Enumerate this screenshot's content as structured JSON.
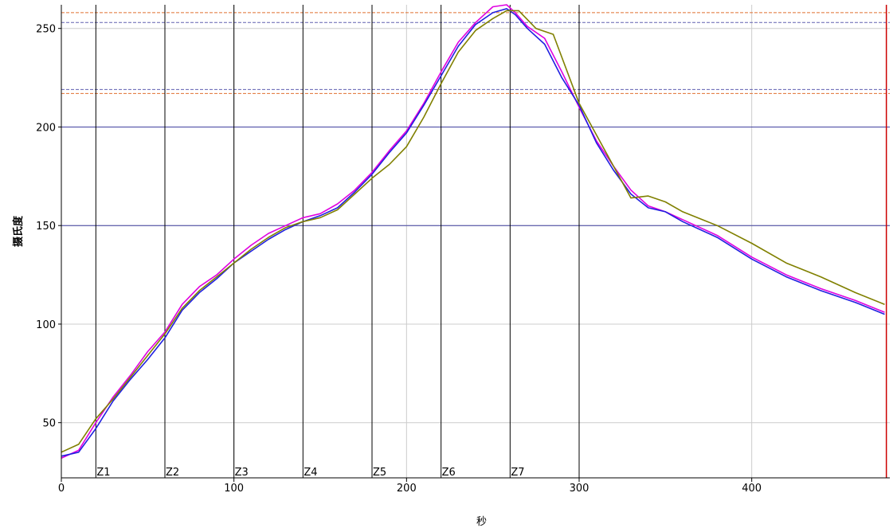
{
  "chart_data": {
    "type": "line",
    "xlabel": "秒",
    "ylabel": "摄氏度",
    "xlim": [
      0,
      480
    ],
    "ylim": [
      22,
      262
    ],
    "x_ticks": [
      0,
      100,
      200,
      300,
      400
    ],
    "y_ticks": [
      50,
      100,
      150,
      200,
      250
    ],
    "zones": [
      {
        "label": "Z1",
        "x": 20
      },
      {
        "label": "Z2",
        "x": 60
      },
      {
        "label": "Z3",
        "x": 100
      },
      {
        "label": "Z4",
        "x": 140
      },
      {
        "label": "Z5",
        "x": 180
      },
      {
        "label": "Z6",
        "x": 220
      },
      {
        "label": "Z7",
        "x": 260
      },
      {
        "label": "",
        "x": 300
      }
    ],
    "reference_lines": [
      {
        "y": 258,
        "color": "#e07030",
        "style": "dashed"
      },
      {
        "y": 253,
        "color": "#6060b0",
        "style": "dashed"
      },
      {
        "y": 219,
        "color": "#6060b0",
        "style": "dashed"
      },
      {
        "y": 217,
        "color": "#e07030",
        "style": "dashed"
      },
      {
        "y": 200,
        "color": "#4040a0",
        "style": "solid"
      },
      {
        "y": 150,
        "color": "#4040a0",
        "style": "solid"
      }
    ],
    "end_line": {
      "x": 478,
      "color": "#cc0000"
    },
    "series": [
      {
        "color": "#e000e0",
        "points": [
          [
            0,
            32
          ],
          [
            10,
            36
          ],
          [
            20,
            50
          ],
          [
            30,
            63
          ],
          [
            40,
            74
          ],
          [
            50,
            86
          ],
          [
            60,
            96
          ],
          [
            70,
            110
          ],
          [
            80,
            119
          ],
          [
            90,
            125
          ],
          [
            100,
            133
          ],
          [
            110,
            140
          ],
          [
            120,
            146
          ],
          [
            130,
            150
          ],
          [
            140,
            154
          ],
          [
            150,
            156
          ],
          [
            160,
            161
          ],
          [
            170,
            168
          ],
          [
            180,
            177
          ],
          [
            190,
            188
          ],
          [
            200,
            198
          ],
          [
            210,
            212
          ],
          [
            220,
            228
          ],
          [
            230,
            243
          ],
          [
            240,
            253
          ],
          [
            250,
            261
          ],
          [
            258,
            262
          ],
          [
            263,
            258
          ],
          [
            270,
            251
          ],
          [
            280,
            245
          ],
          [
            290,
            228
          ],
          [
            300,
            210
          ],
          [
            310,
            193
          ],
          [
            320,
            180
          ],
          [
            330,
            168
          ],
          [
            340,
            160
          ],
          [
            350,
            157
          ],
          [
            360,
            153
          ],
          [
            380,
            145
          ],
          [
            400,
            134
          ],
          [
            420,
            125
          ],
          [
            440,
            118
          ],
          [
            460,
            112
          ],
          [
            477,
            106
          ]
        ]
      },
      {
        "color": "#2020e0",
        "points": [
          [
            0,
            33
          ],
          [
            10,
            35
          ],
          [
            20,
            47
          ],
          [
            30,
            61
          ],
          [
            40,
            72
          ],
          [
            50,
            82
          ],
          [
            60,
            93
          ],
          [
            70,
            107
          ],
          [
            80,
            116
          ],
          [
            90,
            123
          ],
          [
            100,
            131
          ],
          [
            110,
            137
          ],
          [
            120,
            143
          ],
          [
            130,
            148
          ],
          [
            140,
            152
          ],
          [
            150,
            155
          ],
          [
            160,
            159
          ],
          [
            170,
            167
          ],
          [
            180,
            176
          ],
          [
            190,
            187
          ],
          [
            200,
            197
          ],
          [
            210,
            211
          ],
          [
            220,
            226
          ],
          [
            230,
            241
          ],
          [
            240,
            252
          ],
          [
            250,
            258
          ],
          [
            258,
            260
          ],
          [
            263,
            257
          ],
          [
            270,
            250
          ],
          [
            280,
            242
          ],
          [
            290,
            225
          ],
          [
            300,
            211
          ],
          [
            310,
            192
          ],
          [
            320,
            178
          ],
          [
            330,
            166
          ],
          [
            340,
            159
          ],
          [
            350,
            157
          ],
          [
            360,
            152
          ],
          [
            380,
            144
          ],
          [
            400,
            133
          ],
          [
            420,
            124
          ],
          [
            440,
            117
          ],
          [
            460,
            111
          ],
          [
            477,
            105
          ]
        ]
      },
      {
        "color": "#808000",
        "points": [
          [
            0,
            35
          ],
          [
            10,
            39
          ],
          [
            20,
            52
          ],
          [
            30,
            62
          ],
          [
            40,
            73
          ],
          [
            50,
            84
          ],
          [
            60,
            95
          ],
          [
            70,
            108
          ],
          [
            80,
            117
          ],
          [
            90,
            124
          ],
          [
            100,
            131
          ],
          [
            110,
            138
          ],
          [
            120,
            144
          ],
          [
            130,
            149
          ],
          [
            140,
            152
          ],
          [
            150,
            154
          ],
          [
            160,
            158
          ],
          [
            170,
            166
          ],
          [
            180,
            174
          ],
          [
            190,
            181
          ],
          [
            200,
            190
          ],
          [
            210,
            205
          ],
          [
            220,
            222
          ],
          [
            230,
            238
          ],
          [
            240,
            249
          ],
          [
            250,
            255
          ],
          [
            258,
            259
          ],
          [
            265,
            259
          ],
          [
            275,
            250
          ],
          [
            285,
            247
          ],
          [
            300,
            212
          ],
          [
            310,
            196
          ],
          [
            320,
            180
          ],
          [
            330,
            164
          ],
          [
            340,
            165
          ],
          [
            350,
            162
          ],
          [
            360,
            157
          ],
          [
            380,
            150
          ],
          [
            400,
            141
          ],
          [
            420,
            131
          ],
          [
            440,
            124
          ],
          [
            460,
            116
          ],
          [
            477,
            110
          ]
        ]
      }
    ]
  }
}
